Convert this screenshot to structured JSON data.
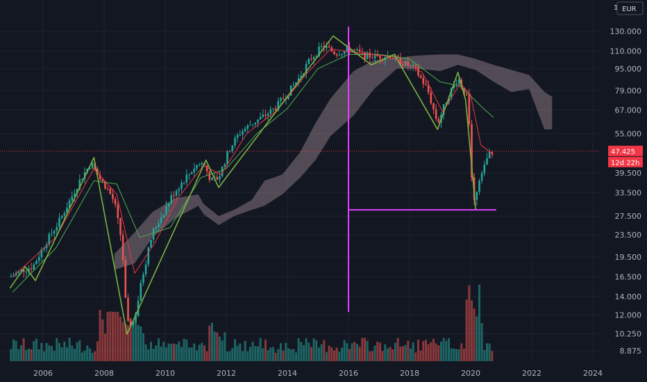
{
  "chart_data": {
    "type": "candlestick",
    "currency": "EUR",
    "log_scale": true,
    "grid": true,
    "x_ticks": [
      "2006",
      "2008",
      "2010",
      "2012",
      "2014",
      "2016",
      "2018",
      "2020",
      "2022",
      "2024"
    ],
    "y_ticks": [
      "130.000",
      "110.000",
      "95.000",
      "79.000",
      "67.000",
      "55.000",
      "47.425",
      "39.500",
      "33.500",
      "27.500",
      "23.500",
      "19.500",
      "16.500",
      "14.000",
      "12.000",
      "10.250",
      "8.875"
    ],
    "last_price": "47.425",
    "countdown": "12d 22h",
    "price_path": [
      [
        "2005-01",
        16.5
      ],
      [
        "2005-06",
        17.5
      ],
      [
        "2005-10",
        18
      ],
      [
        "2006-03",
        22
      ],
      [
        "2006-08",
        26
      ],
      [
        "2007-01",
        32
      ],
      [
        "2007-05",
        38
      ],
      [
        "2007-09",
        43
      ],
      [
        "2007-12",
        38
      ],
      [
        "2008-03",
        35
      ],
      [
        "2008-06",
        31
      ],
      [
        "2008-09",
        22
      ],
      [
        "2008-11",
        11
      ],
      [
        "2009-02",
        11.5
      ],
      [
        "2009-05",
        16.5
      ],
      [
        "2009-09",
        24
      ],
      [
        "2010-01",
        28
      ],
      [
        "2010-05",
        33
      ],
      [
        "2010-09",
        37
      ],
      [
        "2011-02",
        42
      ],
      [
        "2011-05",
        43
      ],
      [
        "2011-08",
        37
      ],
      [
        "2011-11",
        38
      ],
      [
        "2012-03",
        48
      ],
      [
        "2012-07",
        55
      ],
      [
        "2012-12",
        60
      ],
      [
        "2013-04",
        63
      ],
      [
        "2013-09",
        68
      ],
      [
        "2014-01",
        75
      ],
      [
        "2014-06",
        86
      ],
      [
        "2014-11",
        103
      ],
      [
        "2015-04",
        115
      ],
      [
        "2015-09",
        108
      ],
      [
        "2016-03",
        112
      ],
      [
        "2016-08",
        106
      ],
      [
        "2017-01",
        105
      ],
      [
        "2017-06",
        106
      ],
      [
        "2017-11",
        100
      ],
      [
        "2018-04",
        95
      ],
      [
        "2018-09",
        80
      ],
      [
        "2019-01",
        60
      ],
      [
        "2019-05",
        75
      ],
      [
        "2019-09",
        88
      ],
      [
        "2020-01",
        72
      ],
      [
        "2020-03",
        30
      ],
      [
        "2020-06",
        40
      ],
      [
        "2020-10",
        47.425
      ]
    ],
    "ema_fast": [
      [
        "2005-01",
        16.5
      ],
      [
        "2006-06",
        23
      ],
      [
        "2007-09",
        41
      ],
      [
        "2008-06",
        33
      ],
      [
        "2009-01",
        17
      ],
      [
        "2009-09",
        22
      ],
      [
        "2010-06",
        32
      ],
      [
        "2011-04",
        42
      ],
      [
        "2011-11",
        39
      ],
      [
        "2012-09",
        55
      ],
      [
        "2013-09",
        67
      ],
      [
        "2014-09",
        92
      ],
      [
        "2015-06",
        112
      ],
      [
        "2016-06",
        108
      ],
      [
        "2017-06",
        105
      ],
      [
        "2018-06",
        92
      ],
      [
        "2019-02",
        66
      ],
      [
        "2019-09",
        84
      ],
      [
        "2020-01",
        76
      ],
      [
        "2020-05",
        50
      ],
      [
        "2020-10",
        46
      ]
    ],
    "sma_slow": [
      [
        "2005-01",
        14.5
      ],
      [
        "2006-06",
        21
      ],
      [
        "2007-09",
        37
      ],
      [
        "2008-06",
        36
      ],
      [
        "2009-03",
        23
      ],
      [
        "2010-03",
        25
      ],
      [
        "2011-03",
        38
      ],
      [
        "2012-01",
        41
      ],
      [
        "2013-01",
        55
      ],
      [
        "2014-01",
        68
      ],
      [
        "2015-01",
        95
      ],
      [
        "2016-01",
        107
      ],
      [
        "2017-01",
        107
      ],
      [
        "2018-01",
        103
      ],
      [
        "2019-01",
        85
      ],
      [
        "2019-09",
        82
      ],
      [
        "2020-06",
        68
      ],
      [
        "2020-10",
        63
      ]
    ],
    "zigzag": [
      [
        "2004-12",
        15
      ],
      [
        "2005-06",
        18
      ],
      [
        "2005-10",
        16
      ],
      [
        "2007-09",
        45
      ],
      [
        "2008-10",
        10.2
      ],
      [
        "2011-05",
        44
      ],
      [
        "2011-10",
        35
      ],
      [
        "2015-07",
        125
      ],
      [
        "2016-10",
        98
      ],
      [
        "2017-07",
        107
      ],
      [
        "2018-12",
        57
      ],
      [
        "2019-08",
        92
      ],
      [
        "2019-11",
        73
      ],
      [
        "2020-03",
        29
      ]
    ],
    "cloud": [
      [
        "2008-05",
        20.0,
        17.5
      ],
      [
        "2009-01",
        24.0,
        18.5
      ],
      [
        "2009-08",
        28.5,
        23.0
      ],
      [
        "2010-05",
        32.0,
        27.0
      ],
      [
        "2011-02",
        33.0,
        30.0
      ],
      [
        "2011-04",
        30.5,
        28.0
      ],
      [
        "2011-10",
        27.5,
        25.5
      ],
      [
        "2012-04",
        29.0,
        27.5
      ],
      [
        "2012-11",
        31.5,
        29.0
      ],
      [
        "2013-04",
        37.0,
        30.0
      ],
      [
        "2013-11",
        39.0,
        33.0
      ],
      [
        "2014-06",
        47.0,
        38.0
      ],
      [
        "2014-12",
        60.0,
        44.0
      ],
      [
        "2015-06",
        74.0,
        54.0
      ],
      [
        "2016-03",
        93.0,
        64.0
      ],
      [
        "2016-11",
        102.0,
        80.0
      ],
      [
        "2017-08",
        104.0,
        95.0
      ],
      [
        "2018-04",
        106.0,
        95.0
      ],
      [
        "2019-01",
        107.0,
        93.0
      ],
      [
        "2019-08",
        107.0,
        98.0
      ],
      [
        "2020-03",
        103.0,
        94.0
      ],
      [
        "2020-10",
        98.0,
        85.0
      ],
      [
        "2021-05",
        94.0,
        78.0
      ],
      [
        "2021-12",
        90.0,
        80.0
      ],
      [
        "2022-06",
        78.0,
        57.0
      ],
      [
        "2022-09",
        75.0,
        57.0
      ]
    ],
    "annotations": {
      "vertical_line": {
        "x": "2016-01",
        "y_from": 135,
        "y_to": 12.3,
        "color": "#e040fb"
      },
      "horizontal_line": {
        "x_from": "2016-01",
        "x_to": "2020-11",
        "y": 29,
        "color": "#e040fb"
      }
    },
    "volume_colors": {
      "up": "#26a69a",
      "down": "#ef5350"
    }
  },
  "colors": {
    "background": "#131722",
    "up": "#26a69a",
    "down": "#ef5350",
    "ema_fast": "#f23645",
    "sma_slow": "#4caf50",
    "zigzag": "#7cb342",
    "cloud": "#a08c95",
    "annotation": "#e040fb",
    "price_badge": "#f23645"
  }
}
